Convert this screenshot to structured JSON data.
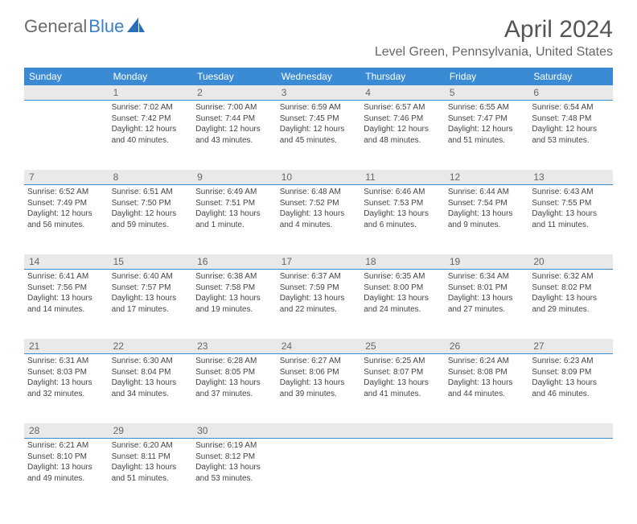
{
  "logo": {
    "part1": "General",
    "part2": "Blue"
  },
  "title": "April 2024",
  "location": "Level Green, Pennsylvania, United States",
  "colors": {
    "header_bg": "#3b8bd4",
    "header_text": "#ffffff",
    "daynum_bg": "#e9e9e9",
    "border": "#3b8bd4",
    "text": "#444444",
    "title": "#555555",
    "logo_gray": "#6b6b6b",
    "logo_blue": "#3b7fc4"
  },
  "weekdays": [
    "Sunday",
    "Monday",
    "Tuesday",
    "Wednesday",
    "Thursday",
    "Friday",
    "Saturday"
  ],
  "weeks": [
    [
      {
        "empty": true
      },
      {
        "day": "1",
        "sunrise": "Sunrise: 7:02 AM",
        "sunset": "Sunset: 7:42 PM",
        "daylight": "Daylight: 12 hours and 40 minutes."
      },
      {
        "day": "2",
        "sunrise": "Sunrise: 7:00 AM",
        "sunset": "Sunset: 7:44 PM",
        "daylight": "Daylight: 12 hours and 43 minutes."
      },
      {
        "day": "3",
        "sunrise": "Sunrise: 6:59 AM",
        "sunset": "Sunset: 7:45 PM",
        "daylight": "Daylight: 12 hours and 45 minutes."
      },
      {
        "day": "4",
        "sunrise": "Sunrise: 6:57 AM",
        "sunset": "Sunset: 7:46 PM",
        "daylight": "Daylight: 12 hours and 48 minutes."
      },
      {
        "day": "5",
        "sunrise": "Sunrise: 6:55 AM",
        "sunset": "Sunset: 7:47 PM",
        "daylight": "Daylight: 12 hours and 51 minutes."
      },
      {
        "day": "6",
        "sunrise": "Sunrise: 6:54 AM",
        "sunset": "Sunset: 7:48 PM",
        "daylight": "Daylight: 12 hours and 53 minutes."
      }
    ],
    [
      {
        "day": "7",
        "sunrise": "Sunrise: 6:52 AM",
        "sunset": "Sunset: 7:49 PM",
        "daylight": "Daylight: 12 hours and 56 minutes."
      },
      {
        "day": "8",
        "sunrise": "Sunrise: 6:51 AM",
        "sunset": "Sunset: 7:50 PM",
        "daylight": "Daylight: 12 hours and 59 minutes."
      },
      {
        "day": "9",
        "sunrise": "Sunrise: 6:49 AM",
        "sunset": "Sunset: 7:51 PM",
        "daylight": "Daylight: 13 hours and 1 minute."
      },
      {
        "day": "10",
        "sunrise": "Sunrise: 6:48 AM",
        "sunset": "Sunset: 7:52 PM",
        "daylight": "Daylight: 13 hours and 4 minutes."
      },
      {
        "day": "11",
        "sunrise": "Sunrise: 6:46 AM",
        "sunset": "Sunset: 7:53 PM",
        "daylight": "Daylight: 13 hours and 6 minutes."
      },
      {
        "day": "12",
        "sunrise": "Sunrise: 6:44 AM",
        "sunset": "Sunset: 7:54 PM",
        "daylight": "Daylight: 13 hours and 9 minutes."
      },
      {
        "day": "13",
        "sunrise": "Sunrise: 6:43 AM",
        "sunset": "Sunset: 7:55 PM",
        "daylight": "Daylight: 13 hours and 11 minutes."
      }
    ],
    [
      {
        "day": "14",
        "sunrise": "Sunrise: 6:41 AM",
        "sunset": "Sunset: 7:56 PM",
        "daylight": "Daylight: 13 hours and 14 minutes."
      },
      {
        "day": "15",
        "sunrise": "Sunrise: 6:40 AM",
        "sunset": "Sunset: 7:57 PM",
        "daylight": "Daylight: 13 hours and 17 minutes."
      },
      {
        "day": "16",
        "sunrise": "Sunrise: 6:38 AM",
        "sunset": "Sunset: 7:58 PM",
        "daylight": "Daylight: 13 hours and 19 minutes."
      },
      {
        "day": "17",
        "sunrise": "Sunrise: 6:37 AM",
        "sunset": "Sunset: 7:59 PM",
        "daylight": "Daylight: 13 hours and 22 minutes."
      },
      {
        "day": "18",
        "sunrise": "Sunrise: 6:35 AM",
        "sunset": "Sunset: 8:00 PM",
        "daylight": "Daylight: 13 hours and 24 minutes."
      },
      {
        "day": "19",
        "sunrise": "Sunrise: 6:34 AM",
        "sunset": "Sunset: 8:01 PM",
        "daylight": "Daylight: 13 hours and 27 minutes."
      },
      {
        "day": "20",
        "sunrise": "Sunrise: 6:32 AM",
        "sunset": "Sunset: 8:02 PM",
        "daylight": "Daylight: 13 hours and 29 minutes."
      }
    ],
    [
      {
        "day": "21",
        "sunrise": "Sunrise: 6:31 AM",
        "sunset": "Sunset: 8:03 PM",
        "daylight": "Daylight: 13 hours and 32 minutes."
      },
      {
        "day": "22",
        "sunrise": "Sunrise: 6:30 AM",
        "sunset": "Sunset: 8:04 PM",
        "daylight": "Daylight: 13 hours and 34 minutes."
      },
      {
        "day": "23",
        "sunrise": "Sunrise: 6:28 AM",
        "sunset": "Sunset: 8:05 PM",
        "daylight": "Daylight: 13 hours and 37 minutes."
      },
      {
        "day": "24",
        "sunrise": "Sunrise: 6:27 AM",
        "sunset": "Sunset: 8:06 PM",
        "daylight": "Daylight: 13 hours and 39 minutes."
      },
      {
        "day": "25",
        "sunrise": "Sunrise: 6:25 AM",
        "sunset": "Sunset: 8:07 PM",
        "daylight": "Daylight: 13 hours and 41 minutes."
      },
      {
        "day": "26",
        "sunrise": "Sunrise: 6:24 AM",
        "sunset": "Sunset: 8:08 PM",
        "daylight": "Daylight: 13 hours and 44 minutes."
      },
      {
        "day": "27",
        "sunrise": "Sunrise: 6:23 AM",
        "sunset": "Sunset: 8:09 PM",
        "daylight": "Daylight: 13 hours and 46 minutes."
      }
    ],
    [
      {
        "day": "28",
        "sunrise": "Sunrise: 6:21 AM",
        "sunset": "Sunset: 8:10 PM",
        "daylight": "Daylight: 13 hours and 49 minutes."
      },
      {
        "day": "29",
        "sunrise": "Sunrise: 6:20 AM",
        "sunset": "Sunset: 8:11 PM",
        "daylight": "Daylight: 13 hours and 51 minutes."
      },
      {
        "day": "30",
        "sunrise": "Sunrise: 6:19 AM",
        "sunset": "Sunset: 8:12 PM",
        "daylight": "Daylight: 13 hours and 53 minutes."
      },
      {
        "empty": true
      },
      {
        "empty": true
      },
      {
        "empty": true
      },
      {
        "empty": true
      }
    ]
  ]
}
